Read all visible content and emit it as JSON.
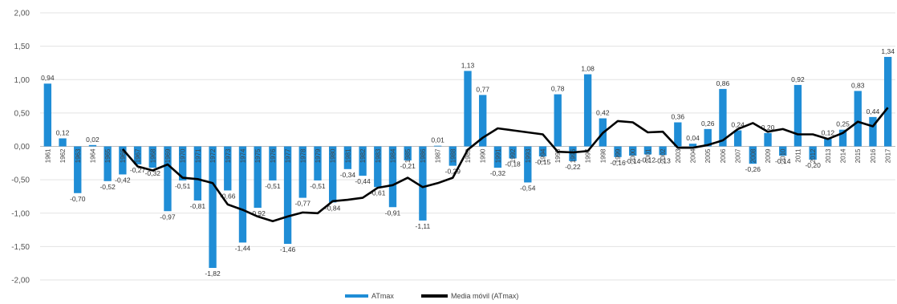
{
  "chart_data": {
    "type": "bar",
    "categories": [
      "1961",
      "1962",
      "1963",
      "1964",
      "1965",
      "1966",
      "1967",
      "1968",
      "1969",
      "1970",
      "1971",
      "1972",
      "1973",
      "1974",
      "1975",
      "1976",
      "1977",
      "1978",
      "1979",
      "1980",
      "1981",
      "1982",
      "1983",
      "1984",
      "1985",
      "1986",
      "1987",
      "1988",
      "1989",
      "1990",
      "1991",
      "1992",
      "1993",
      "1994",
      "1995",
      "1996",
      "1997",
      "1998",
      "1999",
      "2000",
      "2001",
      "2002",
      "2003",
      "2004",
      "2005",
      "2006",
      "2007",
      "2008",
      "2009",
      "2010",
      "2011",
      "2012",
      "2013",
      "2014",
      "2015",
      "2016",
      "2017"
    ],
    "series": [
      {
        "name": "ATmax",
        "color": "#1f8dd6",
        "values": [
          0.94,
          0.12,
          -0.7,
          0.02,
          -0.52,
          -0.42,
          -0.27,
          -0.32,
          -0.97,
          -0.51,
          -0.81,
          -1.82,
          -0.66,
          -1.44,
          -0.92,
          -0.51,
          -1.46,
          -0.77,
          -0.51,
          -0.84,
          -0.34,
          -0.44,
          -0.61,
          -0.91,
          -0.21,
          -1.11,
          0.01,
          -0.29,
          1.13,
          0.77,
          -0.32,
          -0.18,
          -0.54,
          -0.15,
          0.78,
          -0.22,
          1.08,
          0.42,
          -0.16,
          -0.14,
          -0.12,
          -0.13,
          0.36,
          0.04,
          0.26,
          0.86,
          0.24,
          -0.26,
          0.2,
          -0.14,
          0.92,
          -0.2,
          0.12,
          0.25,
          0.83,
          0.44,
          1.34
        ]
      },
      {
        "name": "Media móvil (ATmax)",
        "color": "#000000",
        "type": "line",
        "values": [
          null,
          null,
          null,
          null,
          null,
          -0.04,
          -0.3,
          -0.36,
          -0.27,
          -0.47,
          -0.49,
          -0.55,
          -0.87,
          -0.95,
          -1.05,
          -1.12,
          -1.05,
          -0.99,
          -1.0,
          -0.82,
          -0.8,
          -0.77,
          -0.62,
          -0.58,
          -0.47,
          -0.61,
          -0.55,
          -0.47,
          -0.05,
          0.13,
          0.27,
          0.24,
          0.21,
          0.18,
          -0.08,
          -0.09,
          -0.07,
          0.2,
          0.38,
          0.36,
          0.21,
          0.22,
          -0.02,
          -0.02,
          0.02,
          0.09,
          0.26,
          0.35,
          0.22,
          0.26,
          0.18,
          0.18,
          0.11,
          0.2,
          0.37,
          0.3,
          0.58
        ]
      }
    ],
    "data_labels": [
      "0,94",
      "0,12",
      "-0,70",
      "0,02",
      "-0,52",
      "-0,42",
      "-0,27",
      "-0,32",
      "-0,97",
      "-0,51",
      "-0,81",
      "-1,82",
      "-0,66",
      "-1,44",
      "-0,92",
      "-0,51",
      "-1,46",
      "-0,77",
      "-0,51",
      "-0,84",
      "-0,34",
      "-0,44",
      "-0,61",
      "-0,91",
      "-0,21",
      "-1,11",
      "0,01",
      "-0,29",
      "1,13",
      "0,77",
      "-0,32",
      "-0,18",
      "-0,54",
      "-0,15",
      "0,78",
      "-0,22",
      "1,08",
      "0,42",
      "-0,16",
      "-0,14",
      "-0,12",
      "-0,13",
      "0,36",
      "0,04",
      "0,26",
      "0,86",
      "0,24",
      "-0,26",
      "0,20",
      "-0,14",
      "0,92",
      "-0,20",
      "0,12",
      "0,25",
      "0,83",
      "0,44",
      "1,34"
    ],
    "yticks": [
      "2,00",
      "1,50",
      "1,00",
      "0,50",
      "0,00",
      "-0,50",
      "-1,00",
      "-1,50",
      "-2,00"
    ],
    "ylim": [
      -2,
      2
    ],
    "grid": true,
    "legend_position": "bottom",
    "title": "",
    "xlabel": "",
    "ylabel": ""
  }
}
